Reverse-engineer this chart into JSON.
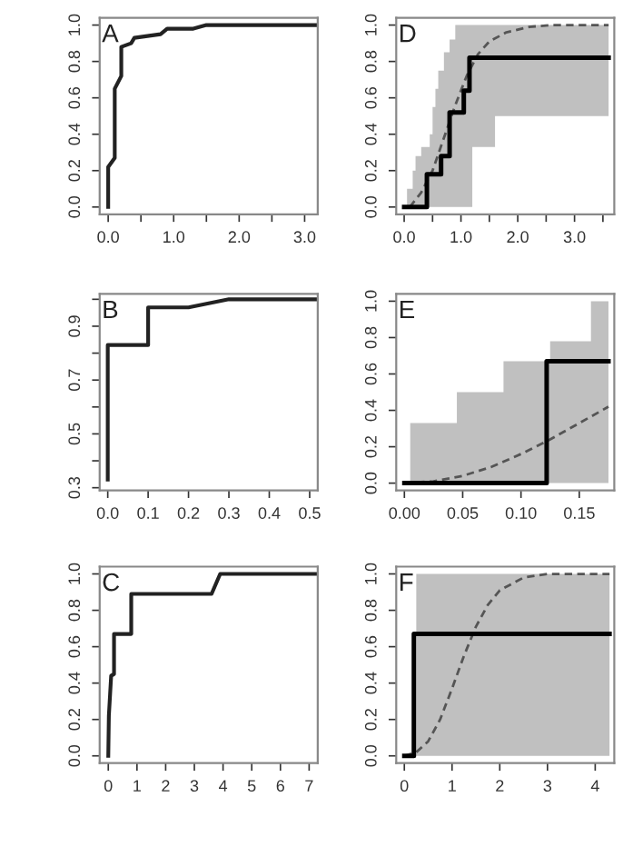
{
  "chart_data": [
    {
      "type": "line",
      "annotations": [
        "A"
      ],
      "xlim": [
        -0.13,
        3.2
      ],
      "ylim": [
        -0.04,
        1.04
      ],
      "xticks": [
        {
          "value": 0,
          "label": "0.0"
        },
        {
          "value": 0.5,
          "label": null
        },
        {
          "value": 1,
          "label": "1.0"
        },
        {
          "value": 1.5,
          "label": null
        },
        {
          "value": 2,
          "label": "2.0"
        },
        {
          "value": 2.5,
          "label": null
        },
        {
          "value": 3,
          "label": "3.0"
        }
      ],
      "yticks": [
        {
          "value": 0,
          "label": "0.0"
        },
        0.2,
        0.4,
        0.6,
        0.8,
        {
          "value": 1,
          "label": "1.0"
        }
      ],
      "series": [
        {
          "color": "#222222",
          "line_style": "solid",
          "x": [
            0,
            0,
            0.1,
            0.1,
            0.2,
            0.2,
            0.35,
            0.4,
            0.6,
            0.8,
            0.9,
            1.3,
            1.5,
            3.2
          ],
          "values": [
            0,
            0.22,
            0.27,
            0.65,
            0.72,
            0.88,
            0.9,
            0.93,
            0.94,
            0.95,
            0.98,
            0.98,
            1.0,
            1.0
          ]
        }
      ]
    },
    {
      "type": "step",
      "annotations": [
        "D"
      ],
      "xlim": [
        -0.14,
        3.7
      ],
      "ylim": [
        -0.04,
        1.04
      ],
      "xticks": [
        {
          "value": 0,
          "label": "0.0"
        },
        {
          "value": 0.5,
          "label": null
        },
        {
          "value": 1,
          "label": "1.0"
        },
        {
          "value": 1.5,
          "label": null
        },
        {
          "value": 2,
          "label": "2.0"
        },
        {
          "value": 2.5,
          "label": null
        },
        {
          "value": 3,
          "label": "3.0"
        },
        {
          "value": 3.5,
          "label": null
        }
      ],
      "yticks": [
        {
          "value": 0,
          "label": "0.0"
        },
        0.2,
        0.4,
        0.6,
        0.8,
        {
          "value": 1,
          "label": "1.0"
        }
      ],
      "series": [
        {
          "type": "step",
          "color": "#000000",
          "x": [
            0,
            0.05,
            0.15,
            0.2,
            0.3,
            0.4,
            0.45,
            0.5,
            0.55,
            0.6,
            0.65,
            0.7,
            0.8,
            0.9,
            1.05,
            1.15,
            1.2,
            1.6,
            3.6
          ],
          "values": [
            0,
            0,
            0,
            0,
            0,
            0.18,
            0.18,
            0.18,
            0.18,
            0.18,
            0.28,
            0.28,
            0.52,
            0.52,
            0.64,
            0.82,
            0.82,
            0.82,
            0.82
          ],
          "upper": [
            null,
            0.1,
            0.2,
            0.28,
            0.33,
            0.33,
            0.4,
            0.55,
            0.65,
            0.75,
            0.75,
            0.85,
            0.92,
            1,
            1,
            1,
            1,
            1,
            1
          ],
          "lower": [
            null,
            0,
            0,
            0,
            0,
            0,
            0,
            0,
            0,
            0,
            0,
            0,
            0,
            0,
            0,
            0,
            0.33,
            0.5,
            0.5
          ]
        },
        {
          "type": "line",
          "color": "#555555",
          "line_style": "dashed",
          "x": [
            0.1,
            0.3,
            0.5,
            0.7,
            0.9,
            1.1,
            1.3,
            1.5,
            1.8,
            2.2,
            2.6,
            3.6
          ],
          "values": [
            0,
            0.08,
            0.2,
            0.38,
            0.56,
            0.72,
            0.84,
            0.91,
            0.96,
            0.99,
            1.0,
            1.0
          ]
        }
      ]
    },
    {
      "type": "line",
      "annotations": [
        "B"
      ],
      "xlim": [
        -0.02,
        0.52
      ],
      "ylim": [
        0.29,
        1.02
      ],
      "xticks": [
        {
          "value": 0,
          "label": "0.0"
        },
        0.1,
        0.2,
        0.3,
        0.4,
        0.5
      ],
      "yticks": [
        0.3,
        {
          "value": 0.4,
          "label": null
        },
        0.5,
        {
          "value": 0.6,
          "label": null
        },
        0.7,
        {
          "value": 0.8,
          "label": null
        },
        0.9,
        {
          "value": 1.0,
          "label": null
        }
      ],
      "series": [
        {
          "color": "#222222",
          "line_style": "solid",
          "x": [
            0,
            0,
            0.1,
            0.1,
            0.2,
            0.3,
            0.52
          ],
          "values": [
            0.33,
            0.83,
            0.83,
            0.97,
            0.97,
            1.0,
            1.0
          ]
        }
      ]
    },
    {
      "type": "step",
      "annotations": [
        "E"
      ],
      "xlim": [
        -0.007,
        0.18
      ],
      "ylim": [
        -0.04,
        1.04
      ],
      "xticks": [
        {
          "value": 0,
          "label": "0.00"
        },
        {
          "value": 0.05,
          "label": "0.05"
        },
        {
          "value": 0.1,
          "label": "0.10"
        },
        {
          "value": 0.15,
          "label": "0.15"
        }
      ],
      "yticks": [
        {
          "value": 0,
          "label": "0.0"
        },
        0.2,
        0.4,
        0.6,
        0.8,
        {
          "value": 1,
          "label": "1.0"
        }
      ],
      "series": [
        {
          "type": "step",
          "color": "#000000",
          "x": [
            0,
            0.005,
            0.045,
            0.085,
            0.122,
            0.125,
            0.16,
            0.175
          ],
          "values": [
            0,
            0,
            0,
            0,
            0.67,
            0.67,
            0.67,
            0.67
          ],
          "upper": [
            null,
            0.33,
            0.5,
            0.67,
            0.67,
            0.78,
            1.0,
            1.0
          ],
          "lower": [
            null,
            0,
            0,
            0,
            0,
            0,
            0,
            0
          ]
        },
        {
          "type": "line",
          "color": "#555555",
          "line_style": "dashed",
          "x": [
            0,
            0.025,
            0.05,
            0.075,
            0.1,
            0.125,
            0.15,
            0.175
          ],
          "values": [
            0,
            0.01,
            0.04,
            0.09,
            0.16,
            0.24,
            0.33,
            0.42
          ]
        }
      ]
    },
    {
      "type": "line",
      "annotations": [
        "C"
      ],
      "xlim": [
        -0.3,
        7.3
      ],
      "ylim": [
        -0.04,
        1.04
      ],
      "xticks": [
        0,
        1,
        2,
        3,
        4,
        5,
        6,
        7
      ],
      "yticks": [
        {
          "value": 0,
          "label": "0.0"
        },
        0.2,
        0.4,
        0.6,
        0.8,
        {
          "value": 1,
          "label": "1.0"
        }
      ],
      "series": [
        {
          "color": "#222222",
          "line_style": "solid",
          "x": [
            0,
            0.02,
            0.1,
            0.2,
            0.2,
            0.8,
            0.8,
            3.6,
            3.9,
            7.3
          ],
          "values": [
            0,
            0.22,
            0.44,
            0.45,
            0.67,
            0.67,
            0.89,
            0.89,
            1.0,
            1.0
          ]
        }
      ]
    },
    {
      "type": "step",
      "annotations": [
        "F"
      ],
      "xlim": [
        -0.17,
        4.4
      ],
      "ylim": [
        -0.04,
        1.04
      ],
      "xticks": [
        0,
        1,
        2,
        3,
        4
      ],
      "yticks": [
        {
          "value": 0,
          "label": "0.0"
        },
        0.2,
        0.4,
        0.6,
        0.8,
        {
          "value": 1,
          "label": "1.0"
        }
      ],
      "series": [
        {
          "type": "step",
          "color": "#000000",
          "x": [
            0,
            0.2,
            0.25,
            4.3
          ],
          "values": [
            0,
            0.67,
            0.67,
            0.67
          ],
          "upper": [
            null,
            null,
            1,
            1
          ],
          "lower": [
            null,
            null,
            0,
            0
          ]
        },
        {
          "type": "line",
          "color": "#555555",
          "line_style": "dashed",
          "x": [
            0,
            0.25,
            0.5,
            0.75,
            1,
            1.25,
            1.5,
            1.75,
            2,
            2.5,
            3,
            4.3
          ],
          "values": [
            0,
            0.02,
            0.08,
            0.2,
            0.37,
            0.55,
            0.71,
            0.83,
            0.91,
            0.98,
            1.0,
            1.0
          ]
        }
      ]
    }
  ]
}
